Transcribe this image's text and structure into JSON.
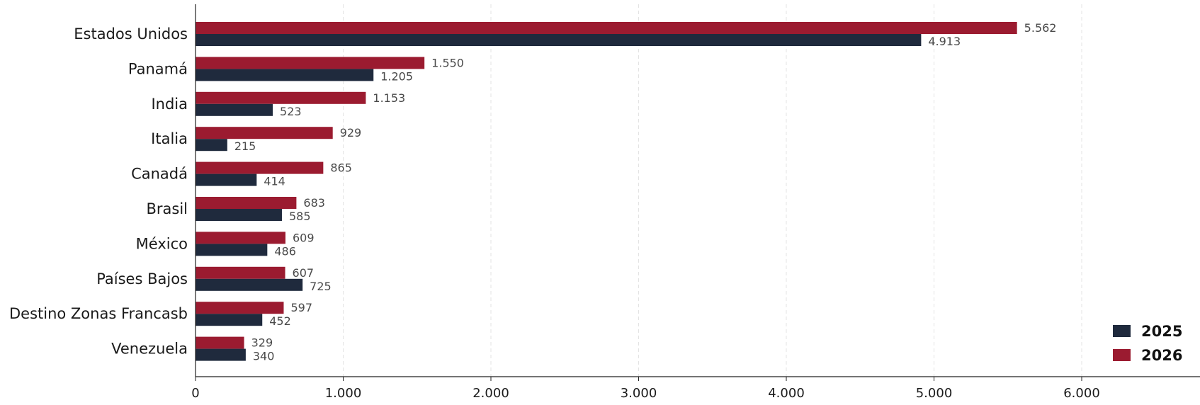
{
  "chart_data": {
    "type": "bar",
    "orientation": "horizontal",
    "categories": [
      "Estados Unidos",
      "Panamá",
      "India",
      "Italia",
      "Canadá",
      "Brasil",
      "México",
      "Países Bajos",
      "Destino Zonas Francasb",
      "Venezuela"
    ],
    "series": [
      {
        "name": "2026",
        "color": "#9b1b30",
        "values": [
          5562,
          1550,
          1153,
          929,
          865,
          683,
          609,
          607,
          597,
          329
        ],
        "labels": [
          "5.562",
          "1.550",
          "1.153",
          "929",
          "865",
          "683",
          "609",
          "607",
          "597",
          "329"
        ]
      },
      {
        "name": "2025",
        "color": "#1f2a3d",
        "values": [
          4913,
          1205,
          523,
          215,
          414,
          585,
          486,
          725,
          452,
          340
        ],
        "labels": [
          "4.913",
          "1.205",
          "523",
          "215",
          "414",
          "585",
          "486",
          "725",
          "452",
          "340"
        ]
      }
    ],
    "xlim": [
      0,
      6500
    ],
    "xticks": [
      0,
      1000,
      2000,
      3000,
      4000,
      5000,
      6000
    ],
    "xtick_labels": [
      "0",
      "1.000",
      "2.000",
      "3.000",
      "4.000",
      "5.000",
      "6.000"
    ],
    "title": "",
    "xlabel": "",
    "ylabel": "",
    "grid": "vertical dashed",
    "legend": {
      "placement": "bottom-right",
      "entries": [
        {
          "label": "2025",
          "color": "#1f2a3d"
        },
        {
          "label": "2026",
          "color": "#9b1b30"
        }
      ]
    }
  }
}
